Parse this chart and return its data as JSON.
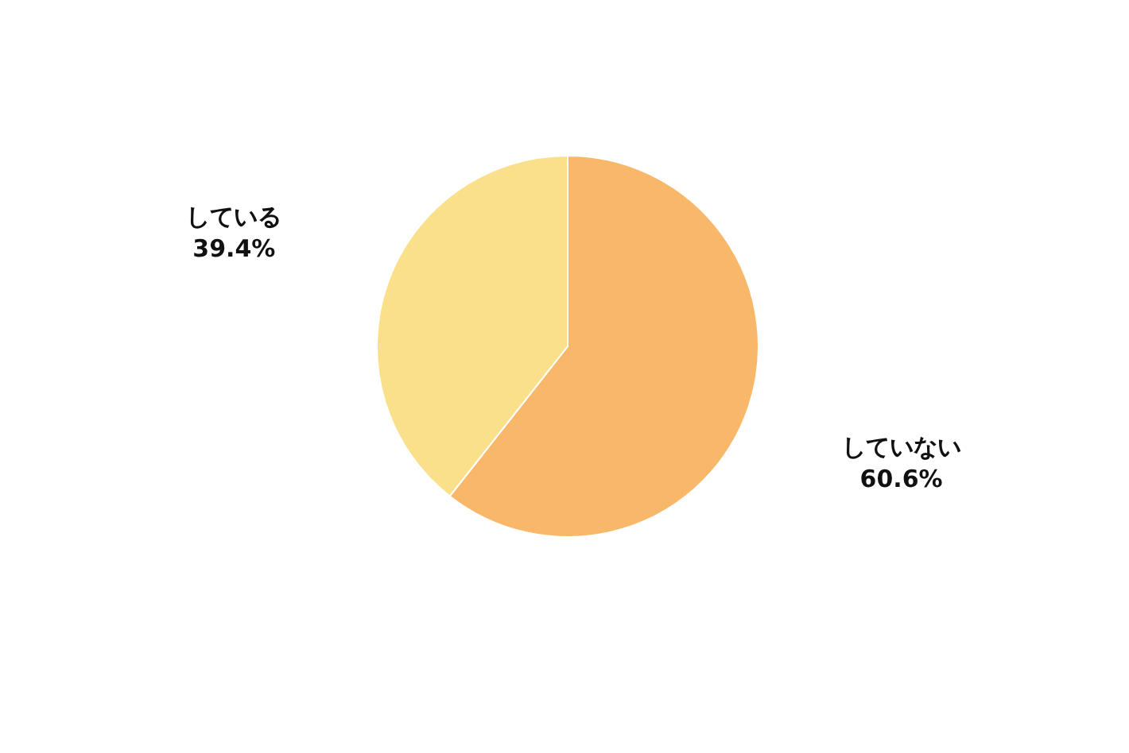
{
  "chart_data": {
    "type": "pie",
    "categories": [
      "していない",
      "している"
    ],
    "values": [
      60.6,
      39.4
    ],
    "colors": [
      "#f9b76a",
      "#fbe08c"
    ],
    "value_labels": [
      "60.6%",
      "39.4%"
    ]
  }
}
